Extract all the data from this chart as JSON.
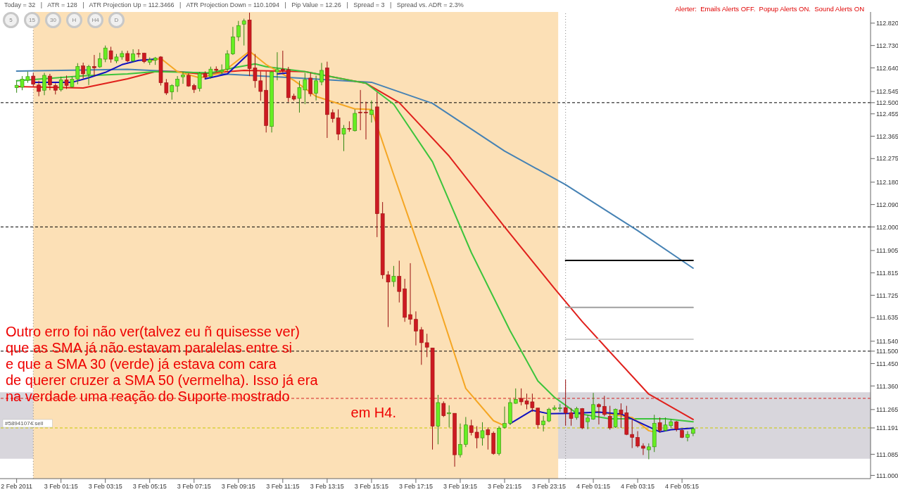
{
  "chart_data": {
    "type": "candlestick",
    "x": [
      "2011-02-02T23:15",
      "2011-02-02T23:30",
      "2011-02-02T23:45",
      "2011-02-03T00:00",
      "2011-02-03T00:15",
      "2011-02-03T00:30",
      "2011-02-03T00:45",
      "2011-02-03T01:00",
      "2011-02-03T01:15",
      "2011-02-03T01:30",
      "2011-02-03T01:45",
      "2011-02-03T02:00",
      "2011-02-03T02:15",
      "2011-02-03T02:30",
      "2011-02-03T02:45",
      "2011-02-03T03:00",
      "2011-02-03T03:15",
      "2011-02-03T03:30",
      "2011-02-03T03:45",
      "2011-02-03T04:00",
      "2011-02-03T04:15",
      "2011-02-03T04:30",
      "2011-02-03T04:45",
      "2011-02-03T05:00",
      "2011-02-03T05:15",
      "2011-02-03T05:30",
      "2011-02-03T05:45",
      "2011-02-03T06:00",
      "2011-02-03T06:15",
      "2011-02-03T06:30",
      "2011-02-03T06:45",
      "2011-02-03T07:00",
      "2011-02-03T07:15",
      "2011-02-03T07:30",
      "2011-02-03T07:45",
      "2011-02-03T08:00",
      "2011-02-03T08:15",
      "2011-02-03T08:30",
      "2011-02-03T08:45",
      "2011-02-03T09:00",
      "2011-02-03T09:15",
      "2011-02-03T09:30",
      "2011-02-03T09:45",
      "2011-02-03T10:00",
      "2011-02-03T10:15",
      "2011-02-03T10:30",
      "2011-02-03T10:45",
      "2011-02-03T11:00",
      "2011-02-03T11:15",
      "2011-02-03T11:30",
      "2011-02-03T11:45",
      "2011-02-03T12:00",
      "2011-02-03T12:15",
      "2011-02-03T12:30",
      "2011-02-03T12:45",
      "2011-02-03T13:00",
      "2011-02-03T13:15",
      "2011-02-03T13:30",
      "2011-02-03T13:45",
      "2011-02-03T14:00",
      "2011-02-03T14:15",
      "2011-02-03T14:30",
      "2011-02-03T14:45",
      "2011-02-03T15:00",
      "2011-02-03T15:15",
      "2011-02-03T15:30",
      "2011-02-03T15:45",
      "2011-02-03T16:00",
      "2011-02-03T16:15",
      "2011-02-03T16:30",
      "2011-02-03T16:45",
      "2011-02-03T17:00",
      "2011-02-03T17:15",
      "2011-02-03T17:30",
      "2011-02-03T17:45",
      "2011-02-03T18:00",
      "2011-02-03T18:15",
      "2011-02-03T18:30",
      "2011-02-03T18:45",
      "2011-02-03T19:00",
      "2011-02-03T19:15",
      "2011-02-03T19:30",
      "2011-02-03T19:45",
      "2011-02-03T20:00",
      "2011-02-03T20:15",
      "2011-02-03T20:30",
      "2011-02-03T20:45",
      "2011-02-03T21:00",
      "2011-02-03T21:15",
      "2011-02-03T21:30",
      "2011-02-03T21:45",
      "2011-02-03T22:00",
      "2011-02-03T22:15",
      "2011-02-03T22:30",
      "2011-02-03T22:45",
      "2011-02-03T23:00",
      "2011-02-03T23:15",
      "2011-02-03T23:30",
      "2011-02-03T23:45",
      "2011-02-04T00:00",
      "2011-02-04T00:15",
      "2011-02-04T00:30",
      "2011-02-04T00:45",
      "2011-02-04T01:00",
      "2011-02-04T01:15",
      "2011-02-04T01:30",
      "2011-02-04T01:45",
      "2011-02-04T02:00",
      "2011-02-04T02:15",
      "2011-02-04T02:30",
      "2011-02-04T02:45",
      "2011-02-04T03:00",
      "2011-02-04T03:15",
      "2011-02-04T03:30",
      "2011-02-04T03:45",
      "2011-02-04T04:00",
      "2011-02-04T04:15",
      "2011-02-04T04:30",
      "2011-02-04T04:45",
      "2011-02-04T05:00",
      "2011-02-04T05:15",
      "2011-02-04T05:30",
      "2011-02-04T05:45"
    ],
    "ohlc": [
      [
        112.56,
        112.59,
        112.54,
        112.57
      ],
      [
        112.562,
        112.607,
        112.55,
        112.595
      ],
      [
        112.59,
        112.625,
        112.58,
        112.605
      ],
      [
        112.607,
        112.62,
        112.565,
        112.574
      ],
      [
        112.571,
        112.588,
        112.526,
        112.545
      ],
      [
        112.55,
        112.62,
        112.53,
        112.61
      ],
      [
        112.607,
        112.616,
        112.55,
        112.571
      ],
      [
        112.569,
        112.578,
        112.533,
        112.55
      ],
      [
        112.552,
        112.605,
        112.545,
        112.592
      ],
      [
        112.592,
        112.609,
        112.555,
        112.569
      ],
      [
        112.564,
        112.605,
        112.56,
        112.595
      ],
      [
        112.595,
        112.659,
        112.574,
        112.646
      ],
      [
        112.648,
        112.661,
        112.597,
        112.616
      ],
      [
        112.614,
        112.652,
        112.571,
        112.646
      ],
      [
        112.646,
        112.692,
        112.607,
        112.64
      ],
      [
        112.644,
        112.701,
        112.64,
        112.677
      ],
      [
        112.675,
        112.73,
        112.663,
        112.72
      ],
      [
        112.709,
        112.725,
        112.661,
        112.675
      ],
      [
        112.668,
        112.696,
        112.659,
        112.684
      ],
      [
        112.684,
        112.709,
        112.673,
        112.698
      ],
      [
        112.698,
        112.709,
        112.663,
        112.668
      ],
      [
        112.668,
        112.715,
        112.663,
        112.696
      ],
      [
        112.698,
        112.715,
        112.682,
        112.696
      ],
      [
        112.699,
        112.701,
        112.659,
        112.665
      ],
      [
        112.663,
        112.682,
        112.652,
        112.673
      ],
      [
        112.671,
        112.684,
        112.652,
        112.68
      ],
      [
        112.684,
        112.687,
        112.569,
        112.58
      ],
      [
        112.58,
        112.595,
        112.531,
        112.539
      ],
      [
        112.543,
        112.574,
        112.512,
        112.569
      ],
      [
        112.567,
        112.607,
        112.543,
        112.595
      ],
      [
        112.604,
        112.624,
        112.576,
        112.611
      ],
      [
        112.61,
        112.618,
        112.564,
        112.567
      ],
      [
        112.569,
        112.576,
        112.539,
        112.553
      ],
      [
        112.557,
        112.624,
        112.545,
        112.618
      ],
      [
        112.618,
        112.626,
        112.597,
        112.602
      ],
      [
        112.605,
        112.645,
        112.597,
        112.635
      ],
      [
        112.635,
        112.646,
        112.624,
        112.63
      ],
      [
        112.624,
        112.654,
        112.616,
        112.63
      ],
      [
        112.635,
        112.711,
        112.626,
        112.696
      ],
      [
        112.696,
        112.805,
        112.692,
        112.765
      ],
      [
        112.765,
        112.829,
        112.748,
        112.81
      ],
      [
        112.816,
        112.838,
        112.73,
        112.829
      ],
      [
        112.833,
        112.862,
        112.607,
        112.637
      ],
      [
        112.64,
        112.696,
        112.56,
        112.588
      ],
      [
        112.588,
        112.626,
        112.508,
        112.545
      ],
      [
        112.55,
        112.626,
        112.38,
        112.408
      ],
      [
        112.404,
        112.626,
        112.38,
        112.624
      ],
      [
        112.624,
        112.703,
        112.59,
        112.633
      ],
      [
        112.635,
        112.709,
        112.621,
        112.63
      ],
      [
        112.633,
        112.644,
        112.503,
        112.52
      ],
      [
        112.526,
        112.536,
        112.508,
        112.514
      ],
      [
        112.517,
        112.588,
        112.46,
        112.561
      ],
      [
        112.551,
        112.62,
        112.494,
        112.593
      ],
      [
        112.599,
        112.62,
        112.525,
        112.536
      ],
      [
        112.538,
        112.609,
        112.509,
        112.588
      ],
      [
        112.583,
        112.66,
        112.57,
        112.63
      ],
      [
        112.64,
        112.665,
        112.358,
        112.452
      ],
      [
        112.46,
        112.473,
        112.42,
        112.436
      ],
      [
        112.439,
        112.473,
        112.349,
        112.373
      ],
      [
        112.373,
        112.41,
        112.305,
        112.397
      ],
      [
        112.396,
        112.425,
        112.383,
        112.393
      ],
      [
        112.387,
        112.473,
        112.384,
        112.457
      ],
      [
        112.462,
        112.551,
        112.389,
        112.46
      ],
      [
        112.462,
        112.504,
        112.352,
        112.46
      ],
      [
        112.452,
        112.509,
        112.42,
        112.47
      ],
      [
        112.483,
        112.541,
        111.959,
        112.053
      ],
      [
        112.053,
        112.1,
        111.791,
        111.807
      ],
      [
        111.807,
        111.822,
        111.597,
        111.778
      ],
      [
        111.78,
        111.843,
        111.759,
        111.801
      ],
      [
        111.801,
        111.864,
        111.696,
        111.74
      ],
      [
        111.751,
        111.791,
        111.618,
        111.636
      ],
      [
        111.647,
        111.854,
        111.607,
        111.628
      ],
      [
        111.628,
        111.66,
        111.523,
        111.581
      ],
      [
        111.586,
        111.597,
        111.445,
        111.534
      ],
      [
        111.534,
        111.57,
        111.476,
        111.516
      ],
      [
        111.513,
        111.513,
        111.104,
        111.198
      ],
      [
        111.198,
        111.324,
        111.125,
        111.293
      ],
      [
        111.29,
        111.298,
        111.235,
        111.24
      ],
      [
        111.248,
        111.282,
        111.193,
        111.252
      ],
      [
        111.25,
        111.25,
        111.035,
        111.083
      ],
      [
        111.083,
        111.209,
        111.072,
        111.125
      ],
      [
        111.125,
        111.235,
        111.114,
        111.203
      ],
      [
        111.2,
        111.224,
        111.161,
        111.172
      ],
      [
        111.174,
        111.198,
        111.109,
        111.151
      ],
      [
        111.151,
        111.214,
        111.12,
        111.18
      ],
      [
        111.184,
        111.193,
        111.104,
        111.163
      ],
      [
        111.17,
        111.177,
        111.083,
        111.088
      ],
      [
        111.088,
        111.198,
        111.08,
        111.19
      ],
      [
        111.193,
        111.277,
        111.188,
        111.209
      ],
      [
        111.209,
        111.308,
        111.203,
        111.293
      ],
      [
        111.29,
        111.35,
        111.288,
        111.306
      ],
      [
        111.31,
        111.35,
        111.282,
        111.296
      ],
      [
        111.3,
        111.329,
        111.266,
        111.287
      ],
      [
        111.296,
        111.329,
        111.256,
        111.272
      ],
      [
        111.271,
        111.271,
        111.188,
        111.204
      ],
      [
        111.204,
        111.24,
        111.177,
        111.219
      ],
      [
        111.219,
        111.272,
        111.214,
        111.266
      ],
      [
        111.266,
        111.282,
        111.261,
        111.272
      ],
      [
        111.272,
        111.287,
        111.256,
        111.272
      ],
      [
        111.273,
        111.386,
        111.2,
        111.252
      ],
      [
        111.252,
        111.271,
        111.2,
        111.229
      ],
      [
        111.233,
        111.276,
        111.224,
        111.269
      ],
      [
        111.269,
        111.271,
        111.186,
        111.191
      ],
      [
        111.216,
        111.243,
        111.186,
        111.231
      ],
      [
        111.226,
        111.332,
        111.224,
        111.285
      ],
      [
        111.285,
        111.29,
        111.205,
        111.276
      ],
      [
        111.278,
        111.32,
        111.238,
        111.245
      ],
      [
        111.238,
        111.28,
        111.184,
        111.191
      ],
      [
        111.195,
        111.269,
        111.191,
        111.266
      ],
      [
        111.263,
        111.29,
        111.191,
        111.247
      ],
      [
        111.252,
        111.28,
        111.162,
        111.165
      ],
      [
        111.165,
        111.224,
        111.11,
        111.153
      ],
      [
        111.153,
        111.178,
        111.112,
        111.118
      ],
      [
        111.118,
        111.129,
        111.082,
        111.109
      ],
      [
        111.103,
        111.129,
        111.065,
        111.115
      ],
      [
        111.115,
        111.244,
        111.094,
        111.21
      ],
      [
        111.212,
        111.233,
        111.172,
        111.181
      ],
      [
        111.181,
        111.233,
        111.177,
        111.203
      ],
      [
        111.2,
        111.226,
        111.191,
        111.216
      ],
      [
        111.216,
        111.219,
        111.177,
        111.186
      ],
      [
        111.181,
        111.186,
        111.15,
        111.153
      ],
      [
        111.153,
        111.178,
        111.137,
        111.165
      ],
      [
        111.169,
        111.195,
        111.158,
        111.188
      ]
    ],
    "series": [
      {
        "type": "line",
        "color": "#4682b4",
        "x": [
          "2011-02-02T23:15",
          "2011-02-03T04:15",
          "2011-02-03T08:30",
          "2011-02-03T11:45",
          "2011-02-03T15:15",
          "2011-02-03T18:00",
          "2011-02-03T21:15",
          "2011-02-04T00:00",
          "2011-02-04T03:15",
          "2011-02-04T05:45"
        ],
        "values": [
          112.627,
          112.634,
          112.616,
          112.6,
          112.582,
          112.497,
          112.305,
          112.17,
          111.985,
          111.834
        ]
      },
      {
        "type": "line",
        "color": "#e0201c",
        "x": [
          "2011-02-02T23:15",
          "2011-02-03T02:15",
          "2011-02-03T04:15",
          "2011-02-03T05:30",
          "2011-02-03T06:30",
          "2011-02-03T07:30",
          "2011-02-03T09:30",
          "2011-02-03T12:15",
          "2011-02-03T15:00",
          "2011-02-03T16:30",
          "2011-02-03T18:45",
          "2011-02-03T21:15",
          "2011-02-03T23:30",
          "2011-02-04T00:45",
          "2011-02-04T02:00",
          "2011-02-04T03:45",
          "2011-02-04T05:45"
        ],
        "values": [
          112.565,
          112.559,
          112.596,
          112.625,
          112.625,
          112.616,
          112.63,
          112.625,
          112.578,
          112.5,
          112.285,
          112.0,
          111.752,
          111.619,
          111.497,
          111.327,
          111.225
        ]
      },
      {
        "type": "line",
        "color": "#3cc43c",
        "x": [
          "2011-02-02T23:15",
          "2011-02-03T02:15",
          "2011-02-03T04:15",
          "2011-02-03T05:30",
          "2011-02-03T08:00",
          "2011-02-03T09:00",
          "2011-02-03T10:00",
          "2011-02-03T10:30",
          "2011-02-03T12:15",
          "2011-02-03T15:00",
          "2011-02-03T16:15",
          "2011-02-03T18:00",
          "2011-02-03T19:45",
          "2011-02-03T21:30",
          "2011-02-03T22:45",
          "2011-02-03T23:30",
          "2011-02-04T00:30",
          "2011-02-04T02:00",
          "2011-02-04T04:30",
          "2011-02-04T05:45"
        ],
        "values": [
          112.588,
          112.608,
          112.616,
          112.625,
          112.62,
          112.64,
          112.656,
          112.645,
          112.625,
          112.578,
          112.494,
          112.262,
          111.897,
          111.582,
          111.38,
          111.314,
          111.25,
          111.228,
          111.228,
          111.216
        ]
      },
      {
        "type": "line",
        "color": "#f5a623",
        "x": [
          "2011-02-03T05:15",
          "2011-02-03T05:45",
          "2011-02-03T06:30",
          "2011-02-03T07:30",
          "2011-02-03T08:30",
          "2011-02-03T09:45",
          "2011-02-03T10:30",
          "2011-02-03T11:45",
          "2011-02-03T12:45",
          "2011-02-03T14:30",
          "2011-02-03T15:15",
          "2011-02-03T16:15",
          "2011-02-03T18:00",
          "2011-02-03T19:30",
          "2011-02-03T20:45",
          "2011-02-03T21:15",
          "2011-02-03T23:30",
          "2011-02-04T01:15",
          "2011-02-04T02:00",
          "2011-02-04T03:00",
          "2011-02-04T03:45",
          "2011-02-04T04:00"
        ],
        "values": [
          112.668,
          112.678,
          112.625,
          112.6,
          112.62,
          112.707,
          112.653,
          112.59,
          112.525,
          112.475,
          112.473,
          112.21,
          111.76,
          111.35,
          111.22,
          111.2,
          null,
          111.26,
          111.247,
          111.233,
          111.18,
          111.175
        ]
      },
      {
        "type": "line",
        "color": "#1010c0",
        "x": [
          "2011-02-03T00:00",
          "2011-02-03T01:45",
          "2011-02-03T02:30",
          "2011-02-03T03:15",
          "2011-02-03T04:00",
          "2011-02-03T04:45",
          "2011-02-03T05:30",
          "2011-02-03T06:30",
          "2011-02-03T07:45",
          "2011-02-03T08:45",
          "2011-02-03T09:45",
          "2011-02-03T10:15",
          "2011-02-03T11:00",
          "2011-02-03T11:30",
          "2011-02-03T12:00",
          "2011-02-03T21:30",
          "2011-02-03T22:30",
          "2011-02-03T23:15",
          "2011-02-04T00:15",
          "2011-02-04T01:30",
          "2011-02-04T02:30",
          "2011-02-04T04:15",
          "2011-02-04T04:45",
          "2011-02-04T05:45"
        ],
        "values": [
          112.582,
          112.582,
          112.6,
          112.622,
          112.653,
          112.67,
          112.675,
          null,
          112.596,
          112.616,
          112.7,
          null,
          112.616,
          112.62,
          null,
          111.208,
          111.262,
          111.248,
          111.25,
          111.255,
          111.247,
          111.175,
          111.184,
          111.19
        ]
      },
      {
        "type": "line",
        "color": "#000000",
        "x": [
          "2011-02-04T00:00",
          "2011-02-04T05:45"
        ],
        "values": [
          111.865,
          111.865
        ]
      },
      {
        "type": "line",
        "color": "#a0a0a0",
        "x": [
          "2011-02-04T00:00",
          "2011-02-04T05:45"
        ],
        "values": [
          111.676,
          111.676
        ]
      },
      {
        "type": "line",
        "color": "#cccccc",
        "x": [
          "2011-02-04T00:00",
          "2011-02-04T05:45"
        ],
        "values": [
          111.548,
          111.548
        ]
      }
    ],
    "xlim": [
      "2011-02-02T22:30",
      "2011-02-04T13:45"
    ],
    "xticks": [
      {
        "value": "2011-02-02T23:15",
        "label": "2 Feb 2011"
      },
      {
        "value": "2011-02-03T01:15",
        "label": "3 Feb 01:15"
      },
      {
        "value": "2011-02-03T03:15",
        "label": "3 Feb 03:15"
      },
      {
        "value": "2011-02-03T05:15",
        "label": "3 Feb 05:15"
      },
      {
        "value": "2011-02-03T07:15",
        "label": "3 Feb 07:15"
      },
      {
        "value": "2011-02-03T09:15",
        "label": "3 Feb 09:15"
      },
      {
        "value": "2011-02-03T11:15",
        "label": "3 Feb 11:15"
      },
      {
        "value": "2011-02-03T13:15",
        "label": "3 Feb 13:15"
      },
      {
        "value": "2011-02-03T15:15",
        "label": "3 Feb 15:15"
      },
      {
        "value": "2011-02-03T17:15",
        "label": "3 Feb 17:15"
      },
      {
        "value": "2011-02-03T19:15",
        "label": "3 Feb 19:15"
      },
      {
        "value": "2011-02-03T21:15",
        "label": "3 Feb 21:15"
      },
      {
        "value": "2011-02-03T23:15",
        "label": "3 Feb 23:15"
      },
      {
        "value": "2011-02-04T01:15",
        "label": "4 Feb 01:15"
      },
      {
        "value": "2011-02-04T03:15",
        "label": "4 Feb 03:15"
      },
      {
        "value": "2011-02-04T05:15",
        "label": "4 Feb 05:15"
      }
    ],
    "ylim": [
      110.987,
      112.865
    ],
    "yticks": [
      {
        "value": 112.82,
        "label": "112.820"
      },
      {
        "value": 112.73,
        "label": "112.730"
      },
      {
        "value": 112.64,
        "label": "112.640"
      },
      {
        "value": 112.545,
        "label": "112.545"
      },
      {
        "value": 112.5,
        "label": "112.500"
      },
      {
        "value": 112.455,
        "label": "112.455"
      },
      {
        "value": 112.365,
        "label": "112.365"
      },
      {
        "value": 112.275,
        "label": "112.275"
      },
      {
        "value": 112.18,
        "label": "112.180"
      },
      {
        "value": 112.09,
        "label": "112.090"
      },
      {
        "value": 112.0,
        "label": "112.000"
      },
      {
        "value": 111.905,
        "label": "111.905"
      },
      {
        "value": 111.815,
        "label": "111.815"
      },
      {
        "value": 111.725,
        "label": "111.725"
      },
      {
        "value": 111.635,
        "label": "111.635"
      },
      {
        "value": 111.54,
        "label": "111.540"
      },
      {
        "value": 111.5,
        "label": "111.500"
      },
      {
        "value": 111.45,
        "label": "111.450"
      },
      {
        "value": 111.36,
        "label": "111.360"
      },
      {
        "value": 111.265,
        "label": "111.265"
      },
      {
        "value": 111.191,
        "label": "111.191"
      },
      {
        "value": 111.085,
        "label": "111.085"
      },
      {
        "value": 111.0,
        "label": "111.000"
      }
    ],
    "ref_lines": [
      {
        "axis": "y",
        "value": 112.5,
        "color": "#000000",
        "line_style": "dashed"
      },
      {
        "axis": "y",
        "value": 112.0,
        "color": "#000000",
        "line_style": "dashed"
      },
      {
        "axis": "y",
        "value": 111.5,
        "color": "#000000",
        "line_style": "dashed"
      },
      {
        "axis": "y",
        "value": 111.31,
        "color": "#d42020",
        "line_style": "dashed"
      },
      {
        "axis": "y",
        "value": 111.191,
        "color": "#c8c800",
        "line_style": "dashed",
        "label": "#58941074 sell"
      },
      {
        "axis": "x",
        "value": "2011-02-03T00:00",
        "color": "#888888",
        "line_style": "dotted"
      },
      {
        "axis": "x",
        "value": "2011-02-04T00:00",
        "color": "#888888",
        "line_style": "dotted"
      }
    ],
    "bands": [
      {
        "axis": "y",
        "from": 111.067,
        "to": 111.335,
        "color": "#d8d6dc"
      },
      {
        "axis": "x",
        "from": "2011-02-03T00:00",
        "to": "2011-02-03T23:40",
        "color": "#fce0b6"
      }
    ],
    "annotations": [
      "Today = 32   |   ATR = 128   |   ATR Projection Up = 112.3466   |   ATR Projection Down = 110.1094   |   Pip Value = 12.26   |   Spread = 3   |   Spread vs. ADR = 2.3%",
      "Alerter:  Emails Alerts OFF.  Popup Alerts ON.  Sound Alerts ON",
      "Outro erro foi não ver(talvez eu ñ quisesse ver)\nque as SMA já não estavam paralelas entre si\ne que a SMA 30 (verde) já estava com cara\nde querer cruzer a SMA 50 (vermelha). Isso já era\nna verdade uma reação do Suporte mostrado\nem H4.",
      "5",
      "15",
      "30",
      "H",
      "H4",
      "D"
    ]
  }
}
